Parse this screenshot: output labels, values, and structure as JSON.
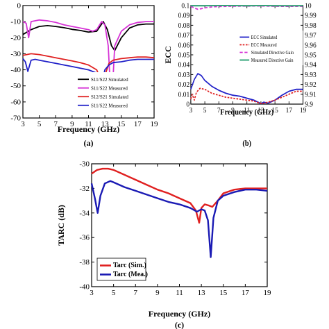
{
  "chart_data": [
    {
      "panel": "a",
      "caption": "(a)",
      "type": "line",
      "xlabel": "Frequency (GHz)",
      "ylabel": "",
      "xlim": [
        3,
        19
      ],
      "ylim": [
        -70,
        0
      ],
      "xticks": [
        3,
        5,
        7,
        9,
        11,
        13,
        15,
        17,
        19
      ],
      "yticks": [
        0,
        -10,
        -20,
        -30,
        -40,
        -50,
        -60,
        -70
      ],
      "legend_position": "bottom-right",
      "series": [
        {
          "name": "S11/S22 Simulated",
          "color": "#000000",
          "points": [
            [
              3,
              -18
            ],
            [
              3.5,
              -16.5
            ],
            [
              4,
              -15
            ],
            [
              5,
              -13
            ],
            [
              6,
              -12.5
            ],
            [
              7,
              -13
            ],
            [
              8,
              -13.8
            ],
            [
              9,
              -14.8
            ],
            [
              10,
              -15.5
            ],
            [
              11,
              -16.5
            ],
            [
              12,
              -16
            ],
            [
              12.8,
              -10
            ],
            [
              13.3,
              -15
            ],
            [
              13.8,
              -25
            ],
            [
              14.2,
              -28
            ],
            [
              15,
              -20
            ],
            [
              16,
              -14
            ],
            [
              17,
              -12
            ],
            [
              18,
              -11.5
            ],
            [
              19,
              -11.5
            ]
          ]
        },
        {
          "name": "S11/S22 Measured",
          "color": "#d633d6",
          "points": [
            [
              3,
              -10
            ],
            [
              3.4,
              -11
            ],
            [
              3.7,
              -20
            ],
            [
              4,
              -10
            ],
            [
              5,
              -9
            ],
            [
              6,
              -9.5
            ],
            [
              7,
              -10.5
            ],
            [
              8,
              -12
            ],
            [
              9,
              -13
            ],
            [
              10,
              -14
            ],
            [
              11,
              -15
            ],
            [
              11.5,
              -16
            ],
            [
              12,
              -15
            ],
            [
              12.6,
              -10
            ],
            [
              13,
              -12
            ],
            [
              13.4,
              -25
            ],
            [
              13.8,
              -64
            ],
            [
              14.2,
              -25
            ],
            [
              15,
              -16
            ],
            [
              16,
              -12
            ],
            [
              17,
              -10.5
            ],
            [
              18,
              -10
            ],
            [
              19,
              -10
            ]
          ]
        },
        {
          "name": "S12/S21 Simulated",
          "color": "#e02020",
          "points": [
            [
              3,
              -31
            ],
            [
              4,
              -30
            ],
            [
              5,
              -30.5
            ],
            [
              6,
              -31.5
            ],
            [
              7,
              -32.5
            ],
            [
              8,
              -33.5
            ],
            [
              9,
              -34.5
            ],
            [
              10,
              -35.5
            ],
            [
              11,
              -37
            ],
            [
              12,
              -40
            ],
            [
              12.5,
              -46
            ],
            [
              12.8,
              -55
            ],
            [
              13.1,
              -42
            ],
            [
              13.5,
              -36
            ],
            [
              14,
              -34
            ],
            [
              15,
              -33
            ],
            [
              16,
              -32.5
            ],
            [
              17,
              -32
            ],
            [
              18,
              -32
            ],
            [
              19,
              -32.5
            ]
          ]
        },
        {
          "name": "S11/S22 Measured",
          "color": "#2020c8",
          "points": [
            [
              3,
              -33
            ],
            [
              3.3,
              -35
            ],
            [
              3.6,
              -41
            ],
            [
              4,
              -34
            ],
            [
              4.5,
              -33.5
            ],
            [
              5,
              -34
            ],
            [
              6,
              -35
            ],
            [
              7,
              -36
            ],
            [
              8,
              -37
            ],
            [
              9,
              -38
            ],
            [
              10,
              -39
            ],
            [
              11,
              -40
            ],
            [
              12,
              -42
            ],
            [
              12.7,
              -47
            ],
            [
              13,
              -40
            ],
            [
              13.5,
              -37
            ],
            [
              14,
              -35.5
            ],
            [
              15,
              -35
            ],
            [
              16,
              -34
            ],
            [
              17,
              -33.5
            ],
            [
              18,
              -33.5
            ],
            [
              19,
              -33.5
            ]
          ]
        }
      ]
    },
    {
      "panel": "b",
      "caption": "(b)",
      "type": "line",
      "xlabel": "Frequency (GHz)",
      "ylabel": "ECC",
      "xlim": [
        3,
        19
      ],
      "ylim": [
        0,
        0.1
      ],
      "y2lim": [
        9.9,
        10
      ],
      "xticks": [
        3,
        5,
        7,
        9,
        11,
        13,
        15,
        17,
        19
      ],
      "yticks": [
        0,
        0.01,
        0.02,
        0.03,
        0.04,
        0.05,
        0.06,
        0.07,
        0.08,
        0.09,
        0.1
      ],
      "y2ticks": [
        9.9,
        9.91,
        9.92,
        9.93,
        9.94,
        9.95,
        9.96,
        9.97,
        9.98,
        9.99,
        10
      ],
      "legend_position": "top-right",
      "series": [
        {
          "name": "ECC Simulated",
          "color": "#2020c8",
          "dash": "",
          "axis": "left",
          "points": [
            [
              3,
              0.015
            ],
            [
              3.5,
              0.025
            ],
            [
              4,
              0.031
            ],
            [
              4.5,
              0.029
            ],
            [
              5,
              0.024
            ],
            [
              6,
              0.018
            ],
            [
              7,
              0.014
            ],
            [
              8,
              0.011
            ],
            [
              9,
              0.009
            ],
            [
              10,
              0.008
            ],
            [
              11,
              0.006
            ],
            [
              12,
              0.004
            ],
            [
              12.6,
              0.002
            ],
            [
              13,
              0.0005
            ],
            [
              13.4,
              0.002
            ],
            [
              14,
              0.001
            ],
            [
              15,
              0.004
            ],
            [
              16,
              0.009
            ],
            [
              17,
              0.013
            ],
            [
              18,
              0.015
            ],
            [
              19,
              0.015
            ]
          ]
        },
        {
          "name": "ECC Measured",
          "color": "#e02020",
          "dash": "3,2",
          "axis": "left",
          "points": [
            [
              3,
              0.005
            ],
            [
              3.2,
              0.01
            ],
            [
              3.5,
              0.004
            ],
            [
              3.8,
              0.012
            ],
            [
              4.3,
              0.016
            ],
            [
              5,
              0.015
            ],
            [
              6,
              0.011
            ],
            [
              7,
              0.009
            ],
            [
              8,
              0.007
            ],
            [
              9,
              0.006
            ],
            [
              10,
              0.005
            ],
            [
              11,
              0.004
            ],
            [
              12,
              0.003
            ],
            [
              12.8,
              0.001
            ],
            [
              13.2,
              0.0005
            ],
            [
              14,
              0.002
            ],
            [
              15,
              0.004
            ],
            [
              16,
              0.007
            ],
            [
              17,
              0.01
            ],
            [
              18,
              0.013
            ],
            [
              19,
              0.013
            ]
          ]
        },
        {
          "name": "Simulated Directive Gain",
          "color": "#d633d6",
          "dash": "5,3",
          "axis": "right",
          "points": [
            [
              3,
              9.9993
            ],
            [
              3.5,
              9.9975
            ],
            [
              4,
              9.9962
            ],
            [
              4.5,
              9.9968
            ],
            [
              5,
              9.9976
            ],
            [
              6,
              9.9986
            ],
            [
              7,
              9.9991
            ],
            [
              9,
              9.9994
            ],
            [
              11,
              9.9995
            ],
            [
              13,
              9.9996
            ],
            [
              15,
              9.9993
            ],
            [
              17,
              9.9992
            ],
            [
              19,
              9.9993
            ]
          ]
        },
        {
          "name": "Measured Directive Gain",
          "color": "#1a9a6a",
          "dash": "",
          "axis": "right",
          "points": [
            [
              3,
              9.9998
            ],
            [
              5,
              9.9998
            ],
            [
              7,
              9.9999
            ],
            [
              9,
              9.9999
            ],
            [
              11,
              9.9998
            ],
            [
              13,
              9.9999
            ],
            [
              15,
              9.9998
            ],
            [
              17,
              9.9997
            ],
            [
              19,
              9.9998
            ]
          ]
        }
      ]
    },
    {
      "panel": "c",
      "caption": "(c)",
      "type": "line",
      "xlabel": "Frequency (GHz)",
      "ylabel": "TARC (dB)",
      "xlim": [
        3,
        19
      ],
      "ylim": [
        -40,
        -30
      ],
      "xticks": [
        3,
        5,
        7,
        9,
        11,
        13,
        15,
        17,
        19
      ],
      "yticks": [
        -30,
        -32,
        -34,
        -36,
        -38,
        -40
      ],
      "legend_position": "bottom-left",
      "series": [
        {
          "name": "Tarc (Sim.)",
          "color": "#e02020",
          "points": [
            [
              3,
              -30.8
            ],
            [
              3.5,
              -30.5
            ],
            [
              4,
              -30.4
            ],
            [
              4.5,
              -30.4
            ],
            [
              5,
              -30.5
            ],
            [
              6,
              -30.9
            ],
            [
              7,
              -31.3
            ],
            [
              8,
              -31.7
            ],
            [
              9,
              -32.1
            ],
            [
              10,
              -32.4
            ],
            [
              11,
              -32.8
            ],
            [
              12,
              -33.2
            ],
            [
              12.5,
              -33.8
            ],
            [
              12.8,
              -34.8
            ],
            [
              13,
              -33.6
            ],
            [
              13.3,
              -33.3
            ],
            [
              13.7,
              -33.4
            ],
            [
              14,
              -33.5
            ],
            [
              14.5,
              -33.0
            ],
            [
              15,
              -32.4
            ],
            [
              16,
              -32.1
            ],
            [
              17,
              -32.0
            ],
            [
              18,
              -32.0
            ],
            [
              19,
              -32.0
            ]
          ]
        },
        {
          "name": "Tarc (Mea.)",
          "color": "#1a1ab4",
          "points": [
            [
              3,
              -31.6
            ],
            [
              3.3,
              -32.8
            ],
            [
              3.55,
              -34.0
            ],
            [
              3.8,
              -32.6
            ],
            [
              4.2,
              -31.6
            ],
            [
              4.7,
              -31.4
            ],
            [
              5,
              -31.5
            ],
            [
              6,
              -31.9
            ],
            [
              7,
              -32.2
            ],
            [
              8,
              -32.5
            ],
            [
              9,
              -32.8
            ],
            [
              10,
              -33.1
            ],
            [
              11,
              -33.3
            ],
            [
              12,
              -33.6
            ],
            [
              12.6,
              -33.9
            ],
            [
              13,
              -33.7
            ],
            [
              13.3,
              -33.8
            ],
            [
              13.6,
              -34.6
            ],
            [
              13.85,
              -37.6
            ],
            [
              14.1,
              -34.4
            ],
            [
              14.5,
              -33.0
            ],
            [
              15,
              -32.6
            ],
            [
              16,
              -32.3
            ],
            [
              17,
              -32.1
            ],
            [
              18,
              -32.1
            ],
            [
              19,
              -32.2
            ]
          ]
        }
      ]
    }
  ]
}
